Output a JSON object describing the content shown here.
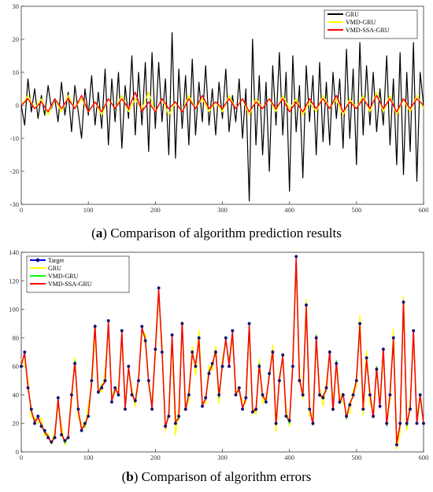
{
  "captions": {
    "a": {
      "letter": "a",
      "text": ") Comparison of algorithm prediction results"
    },
    "b": {
      "letter": "b",
      "text": ") Comparison of algorithm errors"
    }
  },
  "chart_data": [
    {
      "type": "line",
      "panel": "a",
      "title": "",
      "xlabel": "",
      "ylabel": "",
      "xlim": [
        0,
        600
      ],
      "ylim": [
        -30,
        30
      ],
      "xticks": [
        0,
        100,
        200,
        300,
        400,
        500,
        600
      ],
      "yticks": [
        -30,
        -20,
        -10,
        0,
        10,
        20,
        30
      ],
      "grid": false,
      "legend_position": "top-right",
      "series": [
        {
          "name": "GRU",
          "color": "#000000",
          "x": [
            0,
            5,
            10,
            15,
            20,
            25,
            30,
            35,
            40,
            45,
            50,
            55,
            60,
            65,
            70,
            75,
            80,
            85,
            90,
            95,
            100,
            105,
            110,
            115,
            120,
            125,
            130,
            135,
            140,
            145,
            150,
            155,
            160,
            165,
            170,
            175,
            180,
            185,
            190,
            195,
            200,
            205,
            210,
            215,
            220,
            225,
            230,
            235,
            240,
            245,
            250,
            255,
            260,
            265,
            270,
            275,
            280,
            285,
            290,
            295,
            300,
            305,
            310,
            315,
            320,
            325,
            330,
            335,
            340,
            345,
            350,
            355,
            360,
            365,
            370,
            375,
            380,
            385,
            390,
            395,
            400,
            405,
            410,
            415,
            420,
            425,
            430,
            435,
            440,
            445,
            450,
            455,
            460,
            465,
            470,
            475,
            480,
            485,
            490,
            495,
            500,
            505,
            510,
            515,
            520,
            525,
            530,
            535,
            540,
            545,
            550,
            555,
            560,
            565,
            570,
            575,
            580,
            585,
            590,
            595,
            600
          ],
          "y": [
            0,
            -6,
            8,
            -2,
            5,
            -4,
            3,
            -3,
            6,
            -1,
            2,
            -5,
            7,
            -3,
            4,
            -8,
            6,
            -2,
            -10,
            5,
            -3,
            9,
            -6,
            4,
            -7,
            11,
            -12,
            8,
            -5,
            10,
            -13,
            6,
            -4,
            15,
            -9,
            10,
            -6,
            13,
            -14,
            16,
            -7,
            13,
            -5,
            8,
            -15,
            22,
            -16,
            11,
            -7,
            9,
            -12,
            14,
            -9,
            7,
            -5,
            12,
            -6,
            5,
            -9,
            7,
            -4,
            11,
            -8,
            3,
            -5,
            8,
            -10,
            5,
            -29,
            20,
            -12,
            9,
            -15,
            7,
            -20,
            12,
            -6,
            16,
            -9,
            10,
            -26,
            15,
            -8,
            6,
            -22,
            12,
            -5,
            9,
            -15,
            13,
            -11,
            7,
            -12,
            10,
            -4,
            8,
            -13,
            17,
            -10,
            11,
            -18,
            19,
            -9,
            12,
            -6,
            10,
            -8,
            5,
            -6,
            15,
            -12,
            8,
            -18,
            16,
            -21,
            10,
            -14,
            19,
            -23,
            10,
            0
          ]
        },
        {
          "name": "VMD-GRU",
          "color": "#ffff00",
          "x": [
            0,
            10,
            20,
            30,
            40,
            50,
            60,
            70,
            80,
            90,
            100,
            110,
            120,
            130,
            140,
            150,
            160,
            170,
            180,
            190,
            200,
            210,
            220,
            230,
            240,
            250,
            260,
            270,
            280,
            290,
            300,
            310,
            320,
            330,
            340,
            350,
            360,
            370,
            380,
            390,
            400,
            410,
            420,
            430,
            440,
            450,
            460,
            470,
            480,
            490,
            500,
            510,
            520,
            530,
            540,
            550,
            560,
            570,
            580,
            590,
            600
          ],
          "y": [
            0,
            3,
            -1,
            2,
            -3,
            2,
            -2,
            3,
            -1,
            2,
            -2,
            1,
            -3,
            2,
            -1,
            3,
            -2,
            2,
            -1,
            4,
            -2,
            2,
            -3,
            1,
            -2,
            3,
            -1,
            2,
            -2,
            1,
            -2,
            3,
            -1,
            2,
            -3,
            2,
            -1,
            2,
            -2,
            3,
            -1,
            2,
            -3,
            1,
            -2,
            3,
            -1,
            2,
            -3,
            2,
            -1,
            3,
            -2,
            4,
            -2,
            3,
            -3,
            2,
            -2,
            3,
            -1
          ]
        },
        {
          "name": "VMD-SSA-GRU",
          "color": "#ff0000",
          "x": [
            0,
            10,
            20,
            30,
            40,
            50,
            60,
            70,
            80,
            90,
            100,
            110,
            120,
            130,
            140,
            150,
            160,
            170,
            180,
            190,
            200,
            210,
            220,
            230,
            240,
            250,
            260,
            270,
            280,
            290,
            300,
            310,
            320,
            330,
            340,
            350,
            360,
            370,
            380,
            390,
            400,
            410,
            420,
            430,
            440,
            450,
            460,
            470,
            480,
            490,
            500,
            510,
            520,
            530,
            540,
            550,
            560,
            570,
            580,
            590,
            600
          ],
          "y": [
            0,
            2,
            -1,
            1,
            -2,
            2,
            -1,
            2,
            -1,
            3,
            -2,
            1,
            -2,
            2,
            -1,
            2,
            -1,
            4,
            -2,
            1,
            -2,
            2,
            -1,
            1,
            -2,
            2,
            -1,
            3,
            -1,
            1,
            -1,
            2,
            -1,
            2,
            -2,
            1,
            -1,
            2,
            -1,
            2,
            -2,
            1,
            -2,
            2,
            -1,
            2,
            -1,
            3,
            -2,
            1,
            -1,
            2,
            -1,
            3,
            -1,
            2,
            -2,
            2,
            -1,
            2,
            0
          ]
        }
      ],
      "legend": [
        {
          "name": "GRU",
          "color": "#000000"
        },
        {
          "name": "VMD-GRU",
          "color": "#ffff00"
        },
        {
          "name": "VMD-SSA-GRU",
          "color": "#ff0000"
        }
      ]
    },
    {
      "type": "line",
      "panel": "b",
      "title": "",
      "xlabel": "",
      "ylabel": "",
      "xlim": [
        0,
        600
      ],
      "ylim": [
        0,
        140
      ],
      "xticks": [
        0,
        100,
        200,
        300,
        400,
        500,
        600
      ],
      "yticks": [
        0,
        20,
        40,
        60,
        80,
        100,
        120,
        140
      ],
      "grid": false,
      "legend_position": "top-left",
      "x": [
        0,
        5,
        10,
        15,
        20,
        25,
        30,
        35,
        40,
        45,
        50,
        55,
        60,
        65,
        70,
        75,
        80,
        85,
        90,
        95,
        100,
        105,
        110,
        115,
        120,
        125,
        130,
        135,
        140,
        145,
        150,
        155,
        160,
        165,
        170,
        175,
        180,
        185,
        190,
        195,
        200,
        205,
        210,
        215,
        220,
        225,
        230,
        235,
        240,
        245,
        250,
        255,
        260,
        265,
        270,
        275,
        280,
        285,
        290,
        295,
        300,
        305,
        310,
        315,
        320,
        325,
        330,
        335,
        340,
        345,
        350,
        355,
        360,
        365,
        370,
        375,
        380,
        385,
        390,
        395,
        400,
        405,
        410,
        415,
        420,
        425,
        430,
        435,
        440,
        445,
        450,
        455,
        460,
        465,
        470,
        475,
        480,
        485,
        490,
        495,
        500,
        505,
        510,
        515,
        520,
        525,
        530,
        535,
        540,
        545,
        550,
        555,
        560,
        565,
        570,
        575,
        580,
        585,
        590,
        595,
        600
      ],
      "target": [
        60,
        70,
        45,
        30,
        20,
        25,
        18,
        15,
        10,
        7,
        10,
        38,
        12,
        8,
        10,
        40,
        62,
        30,
        15,
        20,
        25,
        50,
        88,
        42,
        45,
        50,
        92,
        35,
        45,
        40,
        85,
        30,
        60,
        40,
        36,
        50,
        88,
        78,
        50,
        30,
        72,
        115,
        70,
        18,
        25,
        82,
        20,
        25,
        90,
        30,
        40,
        70,
        60,
        80,
        32,
        38,
        55,
        62,
        70,
        40,
        60,
        80,
        60,
        85,
        40,
        45,
        30,
        38,
        90,
        28,
        30,
        60,
        40,
        35,
        55,
        70,
        20,
        50,
        68,
        25,
        22,
        60,
        137,
        50,
        40,
        103,
        30,
        20,
        80,
        40,
        38,
        45,
        70,
        30,
        62,
        35,
        40,
        25,
        33,
        40,
        50,
        90,
        30,
        66,
        40,
        25,
        58,
        32,
        72,
        20,
        40,
        80,
        5,
        20,
        105,
        20,
        30,
        85,
        20,
        40,
        20
      ],
      "series": [
        {
          "name": "Target",
          "color": "#0000ff",
          "marker": "circle"
        },
        {
          "name": "GRU",
          "color": "#ffff00",
          "offset": [
            5,
            -8,
            6,
            -6,
            4,
            -5,
            6,
            -4,
            3,
            -2,
            5,
            -6,
            7,
            -3,
            2,
            -5,
            4,
            -6,
            5,
            -3,
            8,
            -5,
            -6,
            4,
            -3,
            6,
            -5,
            3,
            -4,
            5,
            -6,
            4,
            -3,
            5,
            -4,
            3,
            -6,
            5,
            -4,
            6,
            -5,
            -6,
            5,
            -3,
            4,
            -5,
            -8,
            6,
            -4,
            3,
            -5,
            4,
            -6,
            5,
            3,
            -4,
            6,
            -5,
            4,
            -6,
            5,
            -3,
            4,
            -6,
            5,
            -3,
            6,
            -4,
            -5,
            3,
            -4,
            5,
            -6,
            4,
            -3,
            5,
            -6,
            4,
            -5,
            6,
            -4,
            5,
            -7,
            6,
            -3,
            4,
            -5,
            6,
            -4,
            5,
            -6,
            4,
            -3,
            5,
            -4,
            6,
            -5,
            3,
            -6,
            4,
            -5,
            6,
            -4,
            5,
            -6,
            4,
            -3,
            5,
            -6,
            4,
            -5,
            6,
            -3,
            -6,
            4,
            -5,
            6,
            -4,
            5,
            -3
          ]
        },
        {
          "name": "VMD-GRU",
          "color": "#00ff00",
          "offset": [
            2,
            -2,
            1,
            -1,
            2,
            -1,
            1,
            -2,
            1,
            -1,
            2,
            -1,
            1,
            -2,
            1,
            -1,
            2,
            -1,
            1,
            -2,
            1,
            -2,
            1,
            -1,
            2,
            -1,
            -1,
            2,
            -1,
            1,
            -2,
            1,
            -1,
            2,
            -1,
            1,
            -2,
            1,
            -1,
            2,
            -1,
            -2,
            1,
            -1,
            2,
            -1,
            1,
            -2,
            1,
            -1,
            2,
            -1,
            1,
            -2,
            1,
            -1,
            2,
            -1,
            1,
            -2,
            1,
            -1,
            2,
            -1,
            1,
            -2,
            1,
            -1,
            -2,
            1,
            -1,
            2,
            -1,
            1,
            -2,
            1,
            -1,
            2,
            -1,
            1,
            -2,
            1,
            -2,
            1,
            -1,
            -2,
            1,
            -1,
            2,
            -1,
            1,
            -2,
            1,
            -1,
            2,
            -1,
            1,
            -2,
            1,
            -1,
            2,
            -1,
            1,
            -2,
            1,
            -1,
            2,
            -1,
            1,
            -2,
            1,
            -1,
            2,
            -1,
            1,
            -2,
            1,
            -1,
            2
          ]
        },
        {
          "name": "VMD-SSA-GRU",
          "color": "#ff0000",
          "offset": [
            1,
            -1,
            1,
            -1,
            1,
            -1,
            1,
            -1,
            1,
            -1,
            1,
            -1,
            1,
            -1,
            1,
            -1,
            1,
            -1,
            1,
            -1,
            1,
            -1,
            1,
            -1,
            1,
            -1,
            -1,
            1,
            -1,
            1,
            -1,
            1,
            -1,
            1,
            -1,
            1,
            -1,
            1,
            -1,
            1,
            -1,
            -1,
            1,
            -1,
            1,
            -1,
            1,
            -1,
            1,
            -1,
            1,
            -1,
            1,
            -1,
            1,
            -1,
            1,
            -1,
            1,
            -1,
            1,
            -1,
            1,
            -1,
            1,
            -1,
            1,
            -1,
            -1,
            1,
            -1,
            1,
            -1,
            1,
            -1,
            1,
            -1,
            1,
            -1,
            1,
            -1,
            1,
            -1,
            1,
            -1,
            -1,
            1,
            -1,
            1,
            -1,
            1,
            -1,
            1,
            -1,
            1,
            -1,
            1,
            -1,
            1,
            -1,
            1,
            -1,
            1,
            -1,
            1,
            -1,
            1,
            -1,
            1,
            -1,
            1,
            -1,
            1,
            -1,
            1,
            -1,
            1
          ]
        }
      ],
      "legend": [
        {
          "name": "Target",
          "color": "#0000ff"
        },
        {
          "name": "GRU",
          "color": "#ffff00"
        },
        {
          "name": "VMD-GRU",
          "color": "#00ff00"
        },
        {
          "name": "VMD-SSA-GRU",
          "color": "#ff0000"
        }
      ]
    }
  ]
}
